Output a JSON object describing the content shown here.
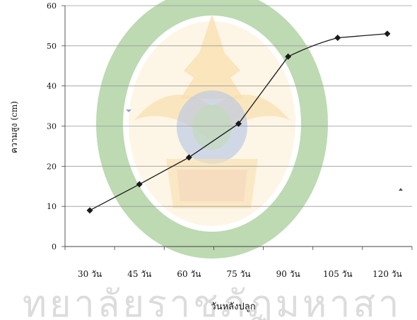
{
  "chart_data": {
    "type": "line",
    "categories": [
      "30 วัน",
      "45 วัน",
      "60 วัน",
      "75 วัน",
      "90 วัน",
      "105 วัน",
      "120 วัน"
    ],
    "series": [
      {
        "values": [
          9,
          15.5,
          22.2,
          30.6,
          47.3,
          52,
          53
        ],
        "color": "#1a1a1a",
        "marker": "diamond"
      }
    ],
    "ylim": [
      0,
      60
    ],
    "yticks": [
      0,
      10,
      20,
      30,
      40,
      50,
      60
    ],
    "xlabel": "วันหลังปลูก",
    "ylabel": "ความสูง (cm)",
    "grid": true,
    "legend": "none"
  },
  "watermark": {
    "text": "ทยาลัยราชภัฏมหาสา",
    "type": "university-seal",
    "colors": {
      "ring": "#6fae59",
      "flame": "#f2bb52",
      "center": "#5b7fc6"
    }
  }
}
